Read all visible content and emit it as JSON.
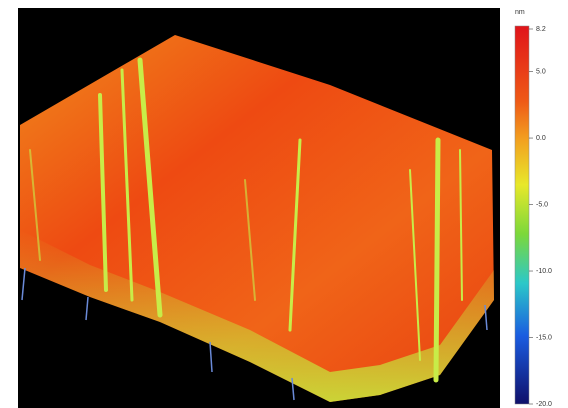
{
  "colorbar": {
    "unit": "nm",
    "ticks": [
      {
        "value": 8.2,
        "label": "8.2"
      },
      {
        "value": 5,
        "label": "5.0"
      },
      {
        "value": 0,
        "label": "0.0"
      },
      {
        "value": -5,
        "label": "-5.0"
      },
      {
        "value": -10,
        "label": "-10.0"
      },
      {
        "value": -15,
        "label": "-15.0"
      },
      {
        "value": -20,
        "label": "-20.0"
      }
    ]
  }
}
